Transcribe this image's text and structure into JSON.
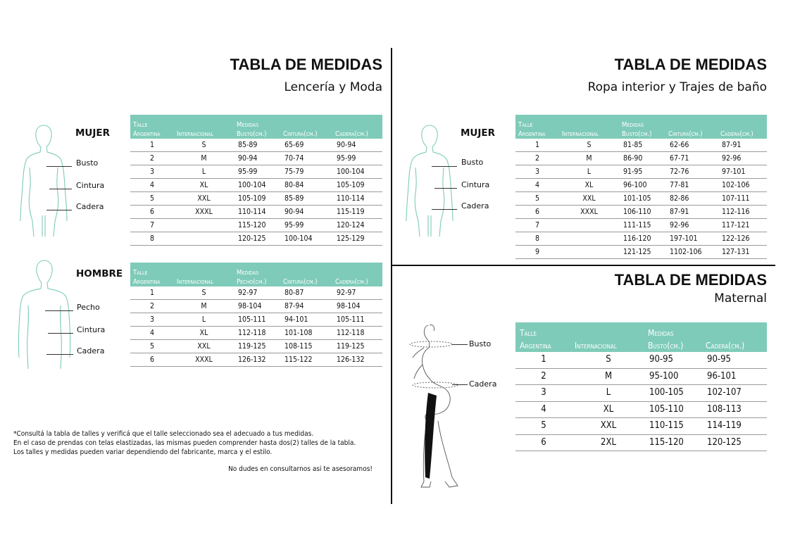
{
  "colors": {
    "accent": "#7fcbb9",
    "figure_line": "#7fcbb9",
    "text": "#111111"
  },
  "lenceria": {
    "title": "TABLA DE MEDIDAS",
    "subtitle": "Lencería y Moda",
    "mujer": {
      "label": "MUJER",
      "markers": [
        "Busto",
        "Cintura",
        "Cadera"
      ],
      "headers": [
        [
          "Talle",
          "Argentina"
        ],
        [
          "",
          "Internacional"
        ],
        [
          "Medidas",
          "Busto(cm.)"
        ],
        [
          "",
          "Cintura(cm.)"
        ],
        [
          "",
          "Cadera(cm.)"
        ]
      ],
      "rows": [
        [
          "1",
          "S",
          "85-89",
          "65-69",
          "90-94"
        ],
        [
          "2",
          "M",
          "90-94",
          "70-74",
          "95-99"
        ],
        [
          "3",
          "L",
          "95-99",
          "75-79",
          "100-104"
        ],
        [
          "4",
          "XL",
          "100-104",
          "80-84",
          "105-109"
        ],
        [
          "5",
          "XXL",
          "105-109",
          "85-89",
          "110-114"
        ],
        [
          "6",
          "XXXL",
          "110-114",
          "90-94",
          "115-119"
        ],
        [
          "7",
          "",
          "115-120",
          "95-99",
          "120-124"
        ],
        [
          "8",
          "",
          "120-125",
          "100-104",
          "125-129"
        ]
      ]
    },
    "hombre": {
      "label": "HOMBRE",
      "markers": [
        "Pecho",
        "Cintura",
        "Cadera"
      ],
      "headers": [
        [
          "Talle",
          "Argentina"
        ],
        [
          "",
          "Internacional"
        ],
        [
          "Medidas",
          "Pecho(cm.)"
        ],
        [
          "",
          "Cintura(cm.)"
        ],
        [
          "",
          "Cadera(cm.)"
        ]
      ],
      "rows": [
        [
          "1",
          "S",
          "92-97",
          "80-87",
          "92-97"
        ],
        [
          "2",
          "M",
          "98-104",
          "87-94",
          "98-104"
        ],
        [
          "3",
          "L",
          "105-111",
          "94-101",
          "105-111"
        ],
        [
          "4",
          "XL",
          "112-118",
          "101-108",
          "112-118"
        ],
        [
          "5",
          "XXL",
          "119-125",
          "108-115",
          "119-125"
        ],
        [
          "6",
          "XXXL",
          "126-132",
          "115-122",
          "126-132"
        ]
      ]
    },
    "notes": [
      "*Consultá la tabla de talles y verificá que el talle seleccionado sea el adecuado a tus medidas.",
      "En el caso de prendas con telas elastizadas, las mismas pueden comprender hasta dos(2) talles de la tabla.",
      "Los talles y medidas pueden variar dependiendo del fabricante, marca y el estilo."
    ],
    "closing": "No dudes en consultarnos asi te asesoramos!"
  },
  "ropa_interior": {
    "title": "TABLA DE MEDIDAS",
    "subtitle": "Ropa interior y Trajes de baño",
    "mujer": {
      "label": "MUJER",
      "markers": [
        "Busto",
        "Cintura",
        "Cadera"
      ],
      "headers": [
        [
          "Talle",
          "Argentina"
        ],
        [
          "",
          "Internacional"
        ],
        [
          "Medidas",
          "Busto(cm.)"
        ],
        [
          "",
          "Cintura(cm.)"
        ],
        [
          "",
          "Cadera(cm.)"
        ]
      ],
      "rows": [
        [
          "1",
          "S",
          "81-85",
          "62-66",
          "87-91"
        ],
        [
          "2",
          "M",
          "86-90",
          "67-71",
          "92-96"
        ],
        [
          "3",
          "L",
          "91-95",
          "72-76",
          "97-101"
        ],
        [
          "4",
          "XL",
          "96-100",
          "77-81",
          "102-106"
        ],
        [
          "5",
          "XXL",
          "101-105",
          "82-86",
          "107-111"
        ],
        [
          "6",
          "XXXL",
          "106-110",
          "87-91",
          "112-116"
        ],
        [
          "7",
          "",
          "111-115",
          "92-96",
          "117-121"
        ],
        [
          "8",
          "",
          "116-120",
          "197-101",
          "122-126"
        ],
        [
          "9",
          "",
          "121-125",
          "1102-106",
          "127-131"
        ]
      ]
    }
  },
  "maternal": {
    "title": "TABLA DE MEDIDAS",
    "subtitle": "Maternal",
    "markers": [
      "Busto",
      "Cadera"
    ],
    "headers": [
      [
        "Talle",
        "Argentina"
      ],
      [
        "",
        "Internacional"
      ],
      [
        "Medidas",
        "Busto(cm.)"
      ],
      [
        "",
        "Cadera(cm.)"
      ]
    ],
    "rows": [
      [
        "1",
        "S",
        "90-95",
        "90-95"
      ],
      [
        "2",
        "M",
        "95-100",
        "96-101"
      ],
      [
        "3",
        "L",
        "100-105",
        "102-107"
      ],
      [
        "4",
        "XL",
        "105-110",
        "108-113"
      ],
      [
        "5",
        "XXL",
        "110-115",
        "114-119"
      ],
      [
        "6",
        "2XL",
        "115-120",
        "120-125"
      ]
    ]
  }
}
